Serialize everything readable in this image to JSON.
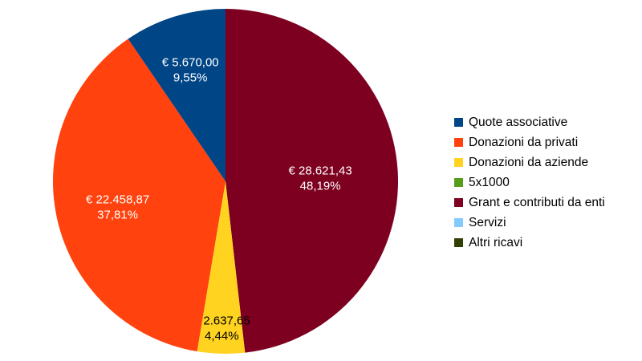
{
  "chart_data": {
    "type": "pie",
    "title": "",
    "legend_position": "right",
    "slices": [
      {
        "name": "Quote associative",
        "value": 5670.0,
        "value_label": "€ 5.670,00",
        "percent_label": "9,55%",
        "color": "#004586",
        "label_color": "#ffffff"
      },
      {
        "name": "Donazioni da privati",
        "value": 22458.87,
        "value_label": "€ 22.458,87",
        "percent_label": "37,81%",
        "color": "#ff420e",
        "label_color": "#ffffff"
      },
      {
        "name": "Donazioni da aziende",
        "value": 2637.65,
        "value_label": "€ 2.637,65",
        "percent_label": "4,44%",
        "color": "#ffd320",
        "label_color": "#000000"
      },
      {
        "name": "5x1000",
        "value": 0,
        "value_label": "",
        "percent_label": "",
        "color": "#579d1c",
        "label_color": "#000000"
      },
      {
        "name": "Grant e contributi da enti",
        "value": 28621.43,
        "value_label": "€ 28.621,43",
        "percent_label": "48,19%",
        "color": "#7e0021",
        "label_color": "#ffffff"
      },
      {
        "name": "Servizi",
        "value": 0,
        "value_label": "",
        "percent_label": "",
        "color": "#83caff",
        "label_color": "#000000"
      },
      {
        "name": "Altri ricavi",
        "value": 0,
        "value_label": "",
        "percent_label": "",
        "color": "#314004",
        "label_color": "#000000"
      }
    ]
  }
}
